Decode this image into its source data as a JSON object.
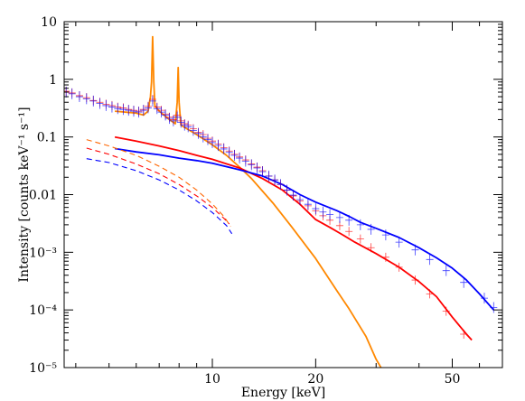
{
  "chart_data": {
    "type": "line",
    "xlabel": "Energy [keV]",
    "ylabel": "Intensity [counts keV⁻¹ s⁻¹]",
    "xscale": "log",
    "yscale": "log",
    "xlim": [
      3.7,
      70
    ],
    "ylim": [
      1e-05,
      10
    ],
    "x_ticks": [
      {
        "value": 10,
        "label": "10"
      },
      {
        "value": 20,
        "label": "20"
      },
      {
        "value": 50,
        "label": "50"
      }
    ],
    "y_ticks": [
      {
        "value": 10,
        "label": "10"
      },
      {
        "value": 1,
        "label": "1"
      },
      {
        "value": 0.1,
        "label": "0.1"
      },
      {
        "value": 0.01,
        "label": "0.01"
      },
      {
        "value": 0.001,
        "label": "10⁻³"
      },
      {
        "value": 0.0001,
        "label": "10⁻⁴"
      },
      {
        "value": 1e-05,
        "label": "10⁻⁵"
      }
    ],
    "grid": false,
    "legend": "none",
    "series": [
      {
        "style": "line",
        "color": "#ff8800",
        "points": [
          [
            5.2,
            0.28
          ],
          [
            6,
            0.26
          ],
          [
            6.3,
            0.24
          ],
          [
            6.5,
            0.28
          ],
          [
            6.6,
            0.5
          ],
          [
            6.65,
            0.9
          ],
          [
            6.7,
            5.5
          ],
          [
            6.75,
            0.9
          ],
          [
            6.8,
            0.35
          ],
          [
            7,
            0.28
          ],
          [
            7.5,
            0.2
          ],
          [
            7.8,
            0.17
          ],
          [
            7.9,
            0.4
          ],
          [
            7.95,
            1.6
          ],
          [
            8.0,
            0.4
          ],
          [
            8.1,
            0.16
          ],
          [
            9,
            0.11
          ],
          [
            10,
            0.073
          ],
          [
            11,
            0.048
          ],
          [
            12,
            0.03
          ],
          [
            13,
            0.019
          ],
          [
            15,
            0.0072
          ],
          [
            17,
            0.0028
          ],
          [
            20,
            0.00078
          ],
          [
            23,
            0.00022
          ],
          [
            25,
            0.000105
          ],
          [
            28,
            3.5e-05
          ],
          [
            30,
            1.4e-05
          ],
          [
            31,
            1e-05
          ]
        ]
      },
      {
        "style": "line",
        "color": "#ff0000",
        "points": [
          [
            5.2,
            0.1
          ],
          [
            6,
            0.085
          ],
          [
            7,
            0.07
          ],
          [
            8,
            0.058
          ],
          [
            9,
            0.048
          ],
          [
            10,
            0.041
          ],
          [
            12,
            0.029
          ],
          [
            14,
            0.019
          ],
          [
            16,
            0.012
          ],
          [
            18,
            0.0068
          ],
          [
            20,
            0.0037
          ],
          [
            22,
            0.0027
          ],
          [
            24,
            0.002
          ],
          [
            26,
            0.0015
          ],
          [
            30,
            0.00095
          ],
          [
            35,
            0.00055
          ],
          [
            40,
            0.00031
          ],
          [
            45,
            0.00017
          ],
          [
            50,
            7.5e-05
          ],
          [
            55,
            3.8e-05
          ],
          [
            57,
            3e-05
          ]
        ]
      },
      {
        "style": "line",
        "color": "#0000ff",
        "points": [
          [
            5.2,
            0.063
          ],
          [
            6,
            0.055
          ],
          [
            7,
            0.049
          ],
          [
            8,
            0.043
          ],
          [
            9,
            0.039
          ],
          [
            10,
            0.035
          ],
          [
            12,
            0.027
          ],
          [
            14,
            0.021
          ],
          [
            16,
            0.015
          ],
          [
            18,
            0.01
          ],
          [
            20,
            0.0074
          ],
          [
            23,
            0.0053
          ],
          [
            25,
            0.0042
          ],
          [
            27,
            0.0033
          ],
          [
            30,
            0.0026
          ],
          [
            35,
            0.0018
          ],
          [
            40,
            0.0012
          ],
          [
            45,
            0.0008
          ],
          [
            50,
            0.00053
          ],
          [
            55,
            0.00033
          ],
          [
            60,
            0.00019
          ],
          [
            66,
            0.0001
          ]
        ]
      },
      {
        "style": "dashed",
        "color": "#ff6600",
        "points": [
          [
            4.3,
            0.09
          ],
          [
            5,
            0.07
          ],
          [
            6,
            0.048
          ],
          [
            7,
            0.031
          ],
          [
            8,
            0.02
          ],
          [
            9,
            0.012
          ],
          [
            10,
            0.0069
          ],
          [
            10.8,
            0.0042
          ],
          [
            11.3,
            0.0028
          ]
        ]
      },
      {
        "style": "dashed",
        "color": "#ff0000",
        "points": [
          [
            4.3,
            0.064
          ],
          [
            5,
            0.05
          ],
          [
            6,
            0.034
          ],
          [
            7,
            0.023
          ],
          [
            8,
            0.015
          ],
          [
            9,
            0.0095
          ],
          [
            10,
            0.006
          ],
          [
            10.8,
            0.0039
          ],
          [
            11.2,
            0.0031
          ]
        ]
      },
      {
        "style": "dashed",
        "color": "#0000ff",
        "points": [
          [
            4.3,
            0.042
          ],
          [
            5,
            0.036
          ],
          [
            6,
            0.026
          ],
          [
            7,
            0.018
          ],
          [
            8,
            0.012
          ],
          [
            9,
            0.0078
          ],
          [
            10,
            0.0049
          ],
          [
            11,
            0.0029
          ],
          [
            11.4,
            0.0021
          ]
        ]
      },
      {
        "style": "points",
        "color": "#ff0000",
        "points": [
          [
            3.75,
            0.62
          ],
          [
            3.9,
            0.58
          ],
          [
            4.1,
            0.52
          ],
          [
            4.3,
            0.48
          ],
          [
            4.5,
            0.43
          ],
          [
            4.7,
            0.4
          ],
          [
            4.9,
            0.37
          ],
          [
            5.1,
            0.35
          ],
          [
            5.3,
            0.33
          ],
          [
            5.5,
            0.32
          ],
          [
            5.7,
            0.3
          ],
          [
            5.9,
            0.29
          ],
          [
            6.1,
            0.28
          ],
          [
            6.3,
            0.3
          ],
          [
            6.5,
            0.34
          ],
          [
            6.7,
            0.45
          ],
          [
            6.9,
            0.33
          ],
          [
            7.1,
            0.29
          ],
          [
            7.3,
            0.25
          ],
          [
            7.5,
            0.22
          ],
          [
            7.7,
            0.2
          ],
          [
            7.9,
            0.24
          ],
          [
            8.1,
            0.19
          ],
          [
            8.3,
            0.17
          ],
          [
            8.5,
            0.16
          ],
          [
            8.8,
            0.14
          ],
          [
            9.1,
            0.12
          ],
          [
            9.4,
            0.11
          ],
          [
            9.7,
            0.095
          ],
          [
            10,
            0.085
          ],
          [
            10.4,
            0.075
          ],
          [
            10.8,
            0.065
          ],
          [
            11.2,
            0.057
          ],
          [
            11.6,
            0.05
          ],
          [
            12,
            0.045
          ],
          [
            12.5,
            0.04
          ],
          [
            13,
            0.034
          ],
          [
            13.5,
            0.03
          ],
          [
            14,
            0.026
          ],
          [
            14.6,
            0.021
          ],
          [
            15.2,
            0.018
          ],
          [
            15.8,
            0.015
          ],
          [
            16.5,
            0.012
          ],
          [
            17.2,
            0.0095
          ],
          [
            18,
            0.0078
          ],
          [
            19,
            0.0064
          ],
          [
            20,
            0.0052
          ],
          [
            21,
            0.0043
          ],
          [
            22,
            0.0036
          ],
          [
            23.5,
            0.0029
          ],
          [
            25,
            0.0023
          ],
          [
            27,
            0.0017
          ],
          [
            29,
            0.0012
          ],
          [
            32,
            0.00082
          ],
          [
            35,
            0.00055
          ],
          [
            39,
            0.00033
          ],
          [
            43,
            0.00019
          ],
          [
            48,
            9.5e-05
          ],
          [
            54,
            3.8e-05
          ]
        ]
      },
      {
        "style": "points",
        "color": "#0000ff",
        "points": [
          [
            3.75,
            0.6
          ],
          [
            3.9,
            0.56
          ],
          [
            4.1,
            0.5
          ],
          [
            4.3,
            0.46
          ],
          [
            4.5,
            0.42
          ],
          [
            4.7,
            0.38
          ],
          [
            4.9,
            0.35
          ],
          [
            5.1,
            0.33
          ],
          [
            5.3,
            0.31
          ],
          [
            5.5,
            0.3
          ],
          [
            5.7,
            0.29
          ],
          [
            5.9,
            0.28
          ],
          [
            6.1,
            0.27
          ],
          [
            6.3,
            0.29
          ],
          [
            6.5,
            0.32
          ],
          [
            6.7,
            0.42
          ],
          [
            6.9,
            0.31
          ],
          [
            7.1,
            0.27
          ],
          [
            7.3,
            0.24
          ],
          [
            7.5,
            0.21
          ],
          [
            7.7,
            0.19
          ],
          [
            7.9,
            0.22
          ],
          [
            8.1,
            0.18
          ],
          [
            8.3,
            0.16
          ],
          [
            8.5,
            0.15
          ],
          [
            8.8,
            0.13
          ],
          [
            9.1,
            0.115
          ],
          [
            9.4,
            0.1
          ],
          [
            9.7,
            0.09
          ],
          [
            10,
            0.08
          ],
          [
            10.4,
            0.071
          ],
          [
            10.8,
            0.062
          ],
          [
            11.2,
            0.054
          ],
          [
            11.6,
            0.048
          ],
          [
            12,
            0.043
          ],
          [
            12.5,
            0.038
          ],
          [
            13,
            0.033
          ],
          [
            13.5,
            0.029
          ],
          [
            14,
            0.025
          ],
          [
            14.6,
            0.021
          ],
          [
            15.2,
            0.018
          ],
          [
            15.8,
            0.015
          ],
          [
            16.5,
            0.012
          ],
          [
            17.2,
            0.0098
          ],
          [
            18,
            0.0082
          ],
          [
            19,
            0.0068
          ],
          [
            20,
            0.0057
          ],
          [
            21,
            0.005
          ],
          [
            22,
            0.0045
          ],
          [
            23.5,
            0.004
          ],
          [
            25,
            0.0036
          ],
          [
            27,
            0.003
          ],
          [
            29,
            0.0025
          ],
          [
            32,
            0.002
          ],
          [
            35,
            0.0015
          ],
          [
            39,
            0.0011
          ],
          [
            43,
            0.00075
          ],
          [
            48,
            0.00048
          ],
          [
            54,
            0.0003
          ],
          [
            62,
            0.00016
          ],
          [
            66,
            0.00011
          ]
        ]
      }
    ]
  }
}
